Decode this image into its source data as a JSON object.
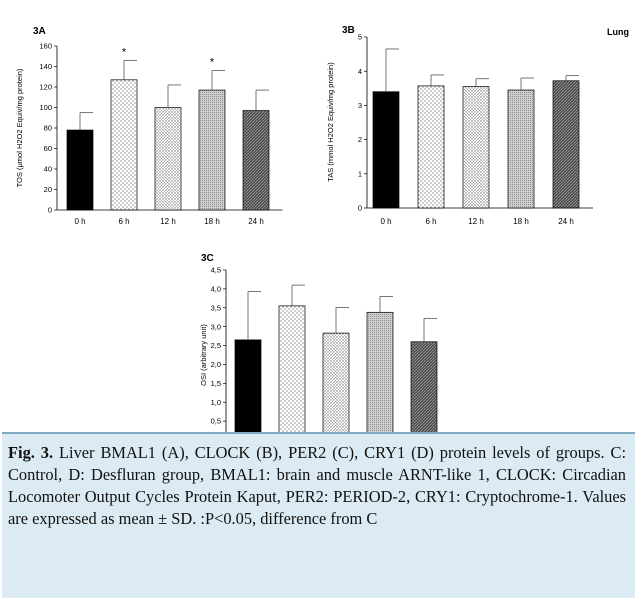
{
  "figure": {
    "corner_label": "Lung",
    "caption_prefix": "Fig. 3.",
    "caption_text": " Liver BMAL1 (A), CLOCK (B), PER2 (C), CRY1 (D) protein levels of groups. C: Control, D: Desfluran group, BMAL1: brain and muscle ARNT-like 1, CLOCK: Circadian Locomoter Output Cycles Protein Kaput, PER2: PERIOD-2, CRY1: Cryptochrome-1. Values are expressed as mean ± SD. :P<0.05, difference from C",
    "colors": {
      "caption_bg": "#dcebf3",
      "caption_border": "#7fa9c0"
    }
  },
  "chart_data": [
    {
      "type": "bar",
      "panel": "3A",
      "ylabel": "TOS (μmol H2O2 Equiv/mg protein)",
      "categories": [
        "0 h",
        "6 h",
        "12 h",
        "18 h",
        "24 h"
      ],
      "values": [
        78,
        127,
        100,
        117,
        97
      ],
      "errors": [
        17,
        19,
        22,
        19,
        20
      ],
      "significance": [
        "",
        "*",
        "",
        "*",
        ""
      ],
      "yticks": [
        "0",
        "20",
        "40",
        "60",
        "80",
        "100",
        "120",
        "140",
        "160"
      ],
      "ylim": [
        0,
        160
      ],
      "bar_patterns": [
        "solid-black",
        "dots-sparse",
        "dots-dense",
        "grey-fine",
        "dark-hatch"
      ],
      "grid": false
    },
    {
      "type": "bar",
      "panel": "3B",
      "ylabel": "TAS (mmol H2O2 Equiv/mg protein)",
      "categories": [
        "0 h",
        "6 h",
        "12 h",
        "18 h",
        "24 h"
      ],
      "values": [
        3.4,
        3.57,
        3.55,
        3.45,
        3.72
      ],
      "errors": [
        1.25,
        0.32,
        0.23,
        0.35,
        0.15
      ],
      "significance": [
        "",
        "",
        "",
        "",
        ""
      ],
      "yticks": [
        "0",
        "1",
        "2",
        "3",
        "4",
        "5"
      ],
      "ylim": [
        0,
        5
      ],
      "bar_patterns": [
        "solid-black",
        "dots-sparse",
        "dots-dense",
        "grey-fine",
        "dark-hatch"
      ],
      "grid": false
    },
    {
      "type": "bar",
      "panel": "3C",
      "ylabel": "OSI (arbitrary unit)",
      "categories": [
        "0 h",
        "6 h",
        "12 h",
        "18 h",
        "24 h"
      ],
      "values": [
        2.65,
        3.55,
        2.83,
        3.38,
        2.6
      ],
      "errors": [
        1.28,
        0.55,
        0.68,
        0.42,
        0.62
      ],
      "significance": [
        "",
        "",
        "",
        "",
        ""
      ],
      "yticks": [
        "0,0",
        "0,5",
        "1,0",
        "1,5",
        "2,0",
        "2,5",
        "3,0",
        "3,5",
        "4,0",
        "4,5"
      ],
      "ylim": [
        0,
        4.5
      ],
      "bar_patterns": [
        "solid-black",
        "dots-sparse",
        "dots-dense",
        "grey-fine",
        "dark-hatch"
      ],
      "grid": false
    }
  ]
}
